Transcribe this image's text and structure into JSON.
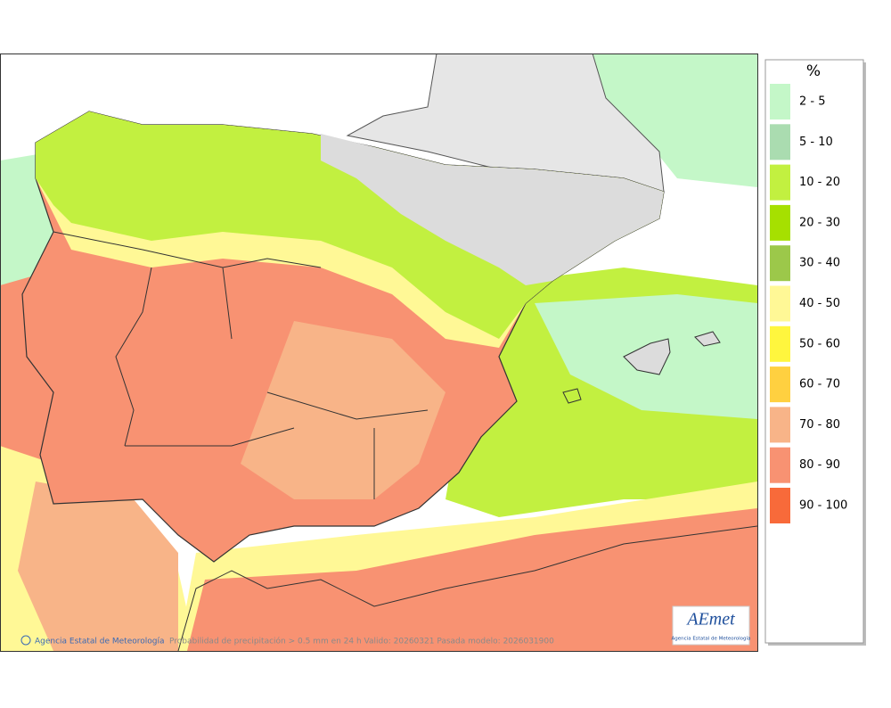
{
  "legend": {
    "title": "%",
    "items": [
      {
        "label": "2 - 5",
        "color": "#c4f7c8"
      },
      {
        "label": "5 - 10",
        "color": "#aadcb0"
      },
      {
        "label": "10 - 20",
        "color": "#c2f040"
      },
      {
        "label": "20 - 30",
        "color": "#a6e000"
      },
      {
        "label": "30 - 40",
        "color": "#9cc84a"
      },
      {
        "label": "40 - 50",
        "color": "#fff896"
      },
      {
        "label": "50 - 60",
        "color": "#fff63e"
      },
      {
        "label": "60 - 70",
        "color": "#ffd040"
      },
      {
        "label": "70 - 80",
        "color": "#f8b488"
      },
      {
        "label": "80 - 90",
        "color": "#f89272"
      },
      {
        "label": "90 - 100",
        "color": "#f86a3a"
      }
    ]
  },
  "footer": {
    "credit": "Agencia Estatal de Meteorología",
    "caption": "Probabilidad de precipitación > 0.5 mm en 24 h Valido: 20260321 Pasada modelo: 2026031900"
  },
  "logo": {
    "name": "AEmet",
    "subtitle": "Agencia Estatal de Meteorología"
  }
}
